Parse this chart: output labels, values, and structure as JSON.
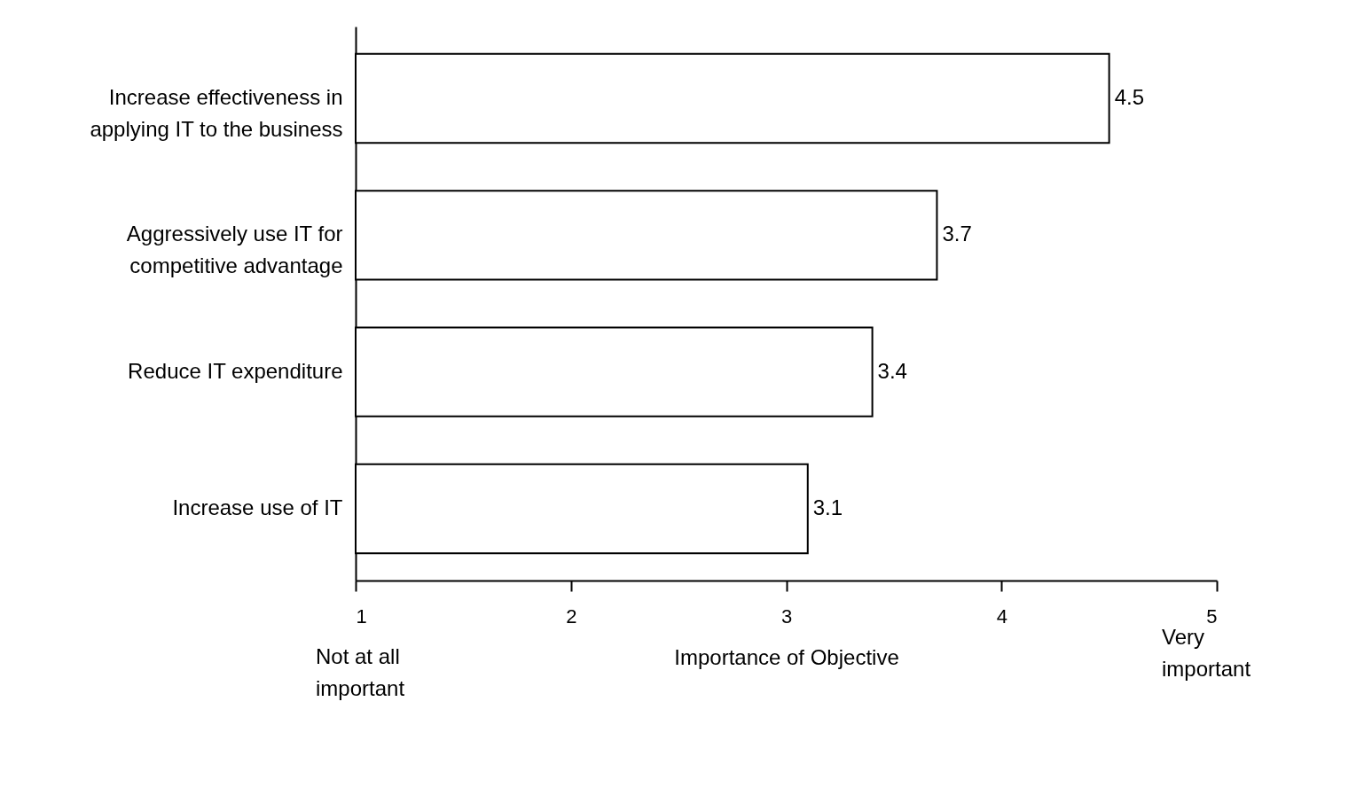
{
  "chart_data": {
    "type": "bar",
    "orientation": "horizontal",
    "categories": [
      "Increase effectiveness in\napplying IT to the business",
      "Aggressively use IT for\ncompetitive advantage",
      "Reduce IT expenditure",
      "Increase use of IT"
    ],
    "values": [
      4.5,
      3.7,
      3.4,
      3.1
    ],
    "color": "#ffffff",
    "xlabel": "Importance of Objective",
    "xlim": [
      1,
      5
    ],
    "xticks": [
      1,
      2,
      3,
      4,
      5
    ],
    "annotations": [
      "Not at all\nimportant",
      "Very\nimportant"
    ],
    "data_labels": true,
    "grid": false
  }
}
